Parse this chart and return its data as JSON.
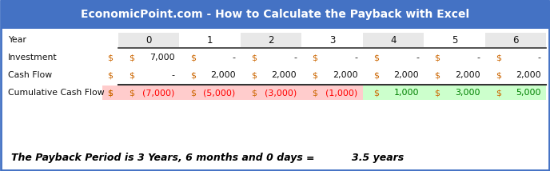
{
  "title": "EconomicPoint.com - How to Calculate the Payback with Excel",
  "title_bg": "#4472C4",
  "title_color": "#FFFFFF",
  "border_color": "#4472C4",
  "bg_color": "#FFFFFF",
  "row_labels": [
    "Year",
    "Investment",
    "Cash Flow",
    "Cumulative Cash Flow"
  ],
  "col_years": [
    "0",
    "1",
    "2",
    "3",
    "4",
    "5",
    "6"
  ],
  "investment_row": [
    [
      "$",
      "7,000"
    ],
    [
      "$",
      "-"
    ],
    [
      "$",
      "-"
    ],
    [
      "$",
      "-"
    ],
    [
      "$",
      "-"
    ],
    [
      "$",
      "-"
    ],
    [
      "$",
      "-"
    ]
  ],
  "cashflow_row": [
    [
      "$",
      "-"
    ],
    [
      "$",
      "2,000"
    ],
    [
      "$",
      "2,000"
    ],
    [
      "$",
      "2,000"
    ],
    [
      "$",
      "2,000"
    ],
    [
      "$",
      "2,000"
    ],
    [
      "$",
      "2,000"
    ]
  ],
  "cumulative_row": [
    [
      "$",
      "(7,000)"
    ],
    [
      "$",
      "(5,000)"
    ],
    [
      "$",
      "(3,000)"
    ],
    [
      "$",
      "(1,000)"
    ],
    [
      "$",
      "1,000"
    ],
    [
      "$",
      "3,000"
    ],
    [
      "$",
      "5,000"
    ]
  ],
  "cumulative_vals": [
    -7000,
    -5000,
    -3000,
    -1000,
    1000,
    3000,
    5000
  ],
  "neg_cell_color": "#FFCCCC",
  "pos_cell_color": "#CCFFCC",
  "neg_text_color": "#FF0000",
  "pos_text_color": "#008000",
  "year_header_alt_bg": "#E8E8E8",
  "footer_text1": "The Payback Period is 3 Years, 6 months and 0 days",
  "footer_eq": "=",
  "footer_text2": "3.5 years",
  "footer_color": "#000000",
  "sep_color": "#333333",
  "dollar_color": "#CC6600",
  "label_color": "#111111",
  "normal_text_color": "#111111"
}
